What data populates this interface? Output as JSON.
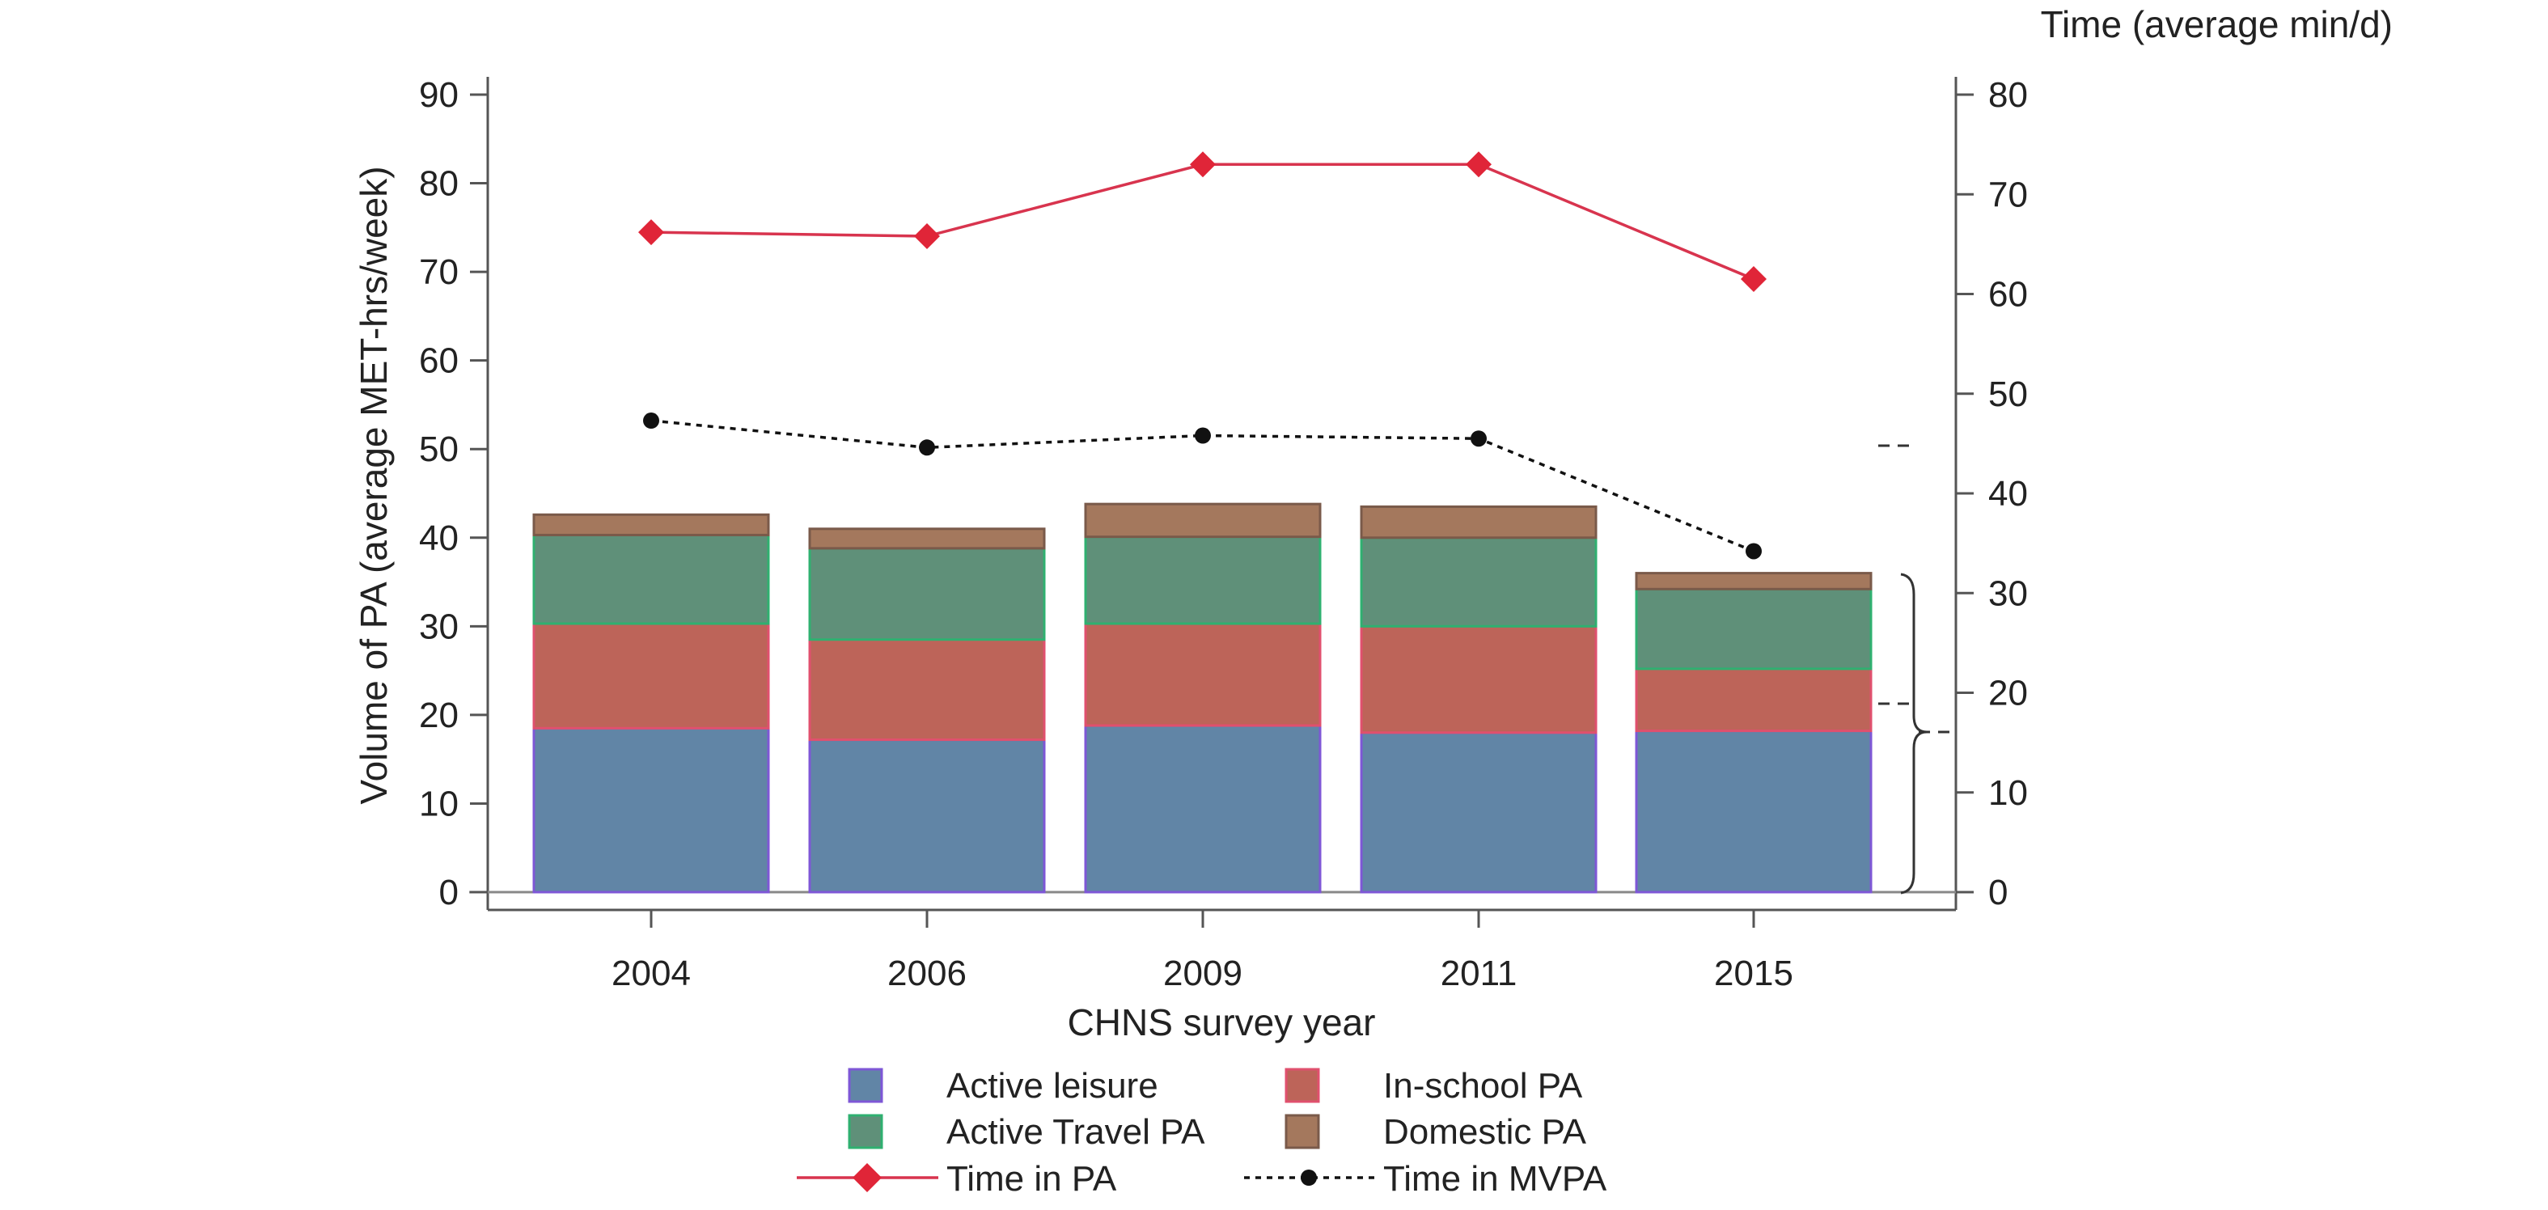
{
  "chart_data": {
    "type": "bar",
    "stacked": true,
    "xlabel": "CHNS survey year",
    "ylabel": "Volume of PA (average MET-hrs/week)",
    "y2label": "Time (average min/d)",
    "categories": [
      "2004",
      "2006",
      "2009",
      "2011",
      "2015"
    ],
    "ylim": [
      0,
      90
    ],
    "yticks": [
      0,
      10,
      20,
      30,
      40,
      50,
      60,
      70,
      80,
      90
    ],
    "y2lim": [
      0,
      80
    ],
    "y2ticks": [
      0,
      10,
      20,
      30,
      40,
      50,
      60,
      70,
      80
    ],
    "grid": false,
    "legend_position": "bottom",
    "series": [
      {
        "name": "Active leisure",
        "values": [
          18.5,
          17.2,
          18.8,
          18.0,
          18.2
        ],
        "color": "#6185a6",
        "edge": "#7e57d6"
      },
      {
        "name": "In-school PA",
        "values": [
          11.8,
          11.3,
          11.5,
          12.0,
          7.0
        ],
        "color": "#bd6459",
        "edge": "#e0506e"
      },
      {
        "name": "Active Travel PA",
        "values": [
          10.0,
          10.3,
          9.8,
          10.0,
          9.0
        ],
        "color": "#5f9079",
        "edge": "#2fb070"
      },
      {
        "name": "Domestic PA",
        "values": [
          2.3,
          2.2,
          3.7,
          3.5,
          1.8
        ],
        "color": "#a4785d",
        "edge": "#7a5a4a"
      }
    ],
    "lines": [
      {
        "name": "Time in PA",
        "axis": "right",
        "values": [
          66.2,
          65.8,
          73.0,
          73.0,
          61.5
        ],
        "color": "#d8344e",
        "marker": "diamond",
        "marker_color": "#e02538",
        "dash": "solid"
      },
      {
        "name": "Time in MVPA",
        "axis": "right",
        "values": [
          47.3,
          44.6,
          45.8,
          45.5,
          34.2
        ],
        "color": "#111111",
        "marker": "circle",
        "marker_color": "#111111",
        "dash": "dotted"
      }
    ]
  }
}
